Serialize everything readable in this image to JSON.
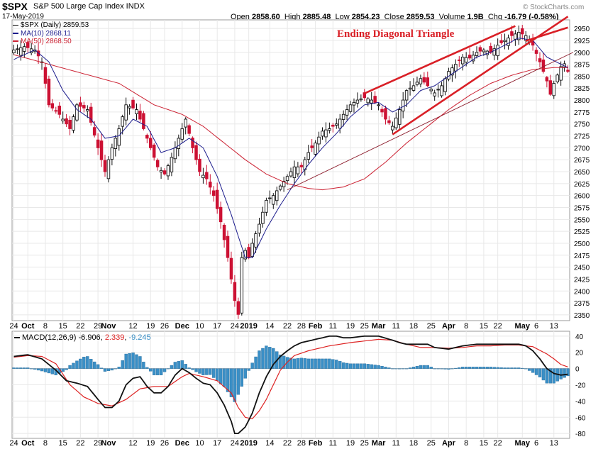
{
  "header": {
    "symbol": "$SPX",
    "name": "S&P 500 Large Cap Index  INDX",
    "date": "17-May-2019",
    "open_label": "Open",
    "open": "2858.60",
    "high_label": "High",
    "high": "2885.48",
    "low_label": "Low",
    "low": "2854.23",
    "close_label": "Close",
    "close": "2859.53",
    "volume_label": "Volume",
    "volume": "1.9B",
    "chg_label": "Chg",
    "chg": "-16.79 (-0.58%)",
    "watermark": "© StockCharts.com"
  },
  "legend": {
    "price": "$SPX (Daily) 2859.53",
    "ma10": "MA(10) 2868.11",
    "ma50": "MA(50) 2868.50",
    "macd_label": "MACD(12,26,9)",
    "macd_value": "-6.906",
    "signal_value": "2.339",
    "hist_value": "-9.245"
  },
  "annotation": "Ending Diagonal Triangle",
  "colors": {
    "ma10": "#1c1c8c",
    "ma50": "#cc2233",
    "up": "#111111",
    "down": "#cc1133",
    "hist": "#3a8fc6",
    "macd": "#111111",
    "signal": "#dd2222",
    "pattern": "#d91f26",
    "trendline": "#8b1a2a",
    "grid": "#e8e8e8"
  },
  "chart_data": {
    "type": "candlestick",
    "title": "$SPX S&P 500 Large Cap Index",
    "ylim": [
      2338,
      2968
    ],
    "y_ticks": [
      2350,
      2375,
      2400,
      2425,
      2450,
      2475,
      2500,
      2525,
      2550,
      2575,
      2600,
      2625,
      2650,
      2675,
      2700,
      2725,
      2750,
      2775,
      2800,
      2825,
      2850,
      2875,
      2900,
      2925,
      2950
    ],
    "x_tick_labels": [
      {
        "i": 0,
        "label": "24"
      },
      {
        "i": 4,
        "label": "Oct"
      },
      {
        "i": 9,
        "label": "8"
      },
      {
        "i": 14,
        "label": "15"
      },
      {
        "i": 19,
        "label": "22"
      },
      {
        "i": 24,
        "label": "29"
      },
      {
        "i": 27,
        "label": "Nov"
      },
      {
        "i": 34,
        "label": "12"
      },
      {
        "i": 39,
        "label": "19"
      },
      {
        "i": 43,
        "label": "26"
      },
      {
        "i": 48,
        "label": "Dec"
      },
      {
        "i": 53,
        "label": "10"
      },
      {
        "i": 58,
        "label": "17"
      },
      {
        "i": 63,
        "label": "24"
      },
      {
        "i": 67,
        "label": "2019"
      },
      {
        "i": 73,
        "label": "14"
      },
      {
        "i": 78,
        "label": "22"
      },
      {
        "i": 82,
        "label": "28"
      },
      {
        "i": 86,
        "label": "Feb"
      },
      {
        "i": 91,
        "label": "11"
      },
      {
        "i": 96,
        "label": "19"
      },
      {
        "i": 100,
        "label": "25"
      },
      {
        "i": 104,
        "label": "Mar"
      },
      {
        "i": 109,
        "label": "11"
      },
      {
        "i": 114,
        "label": "18"
      },
      {
        "i": 119,
        "label": "25"
      },
      {
        "i": 124,
        "label": "Apr"
      },
      {
        "i": 129,
        "label": "8"
      },
      {
        "i": 134,
        "label": "15"
      },
      {
        "i": 138,
        "label": "22"
      },
      {
        "i": 145,
        "label": "May"
      },
      {
        "i": 149,
        "label": "6"
      },
      {
        "i": 154,
        "label": "13"
      }
    ],
    "close_anchors": [
      [
        0,
        2905
      ],
      [
        3,
        2912
      ],
      [
        6,
        2905
      ],
      [
        8,
        2880
      ],
      [
        10,
        2790
      ],
      [
        13,
        2770
      ],
      [
        16,
        2740
      ],
      [
        18,
        2790
      ],
      [
        21,
        2780
      ],
      [
        24,
        2700
      ],
      [
        26,
        2650
      ],
      [
        28,
        2700
      ],
      [
        30,
        2740
      ],
      [
        32,
        2790
      ],
      [
        35,
        2780
      ],
      [
        37,
        2740
      ],
      [
        39,
        2700
      ],
      [
        41,
        2660
      ],
      [
        43,
        2645
      ],
      [
        45,
        2680
      ],
      [
        47,
        2720
      ],
      [
        49,
        2760
      ],
      [
        51,
        2700
      ],
      [
        53,
        2650
      ],
      [
        55,
        2635
      ],
      [
        57,
        2600
      ],
      [
        59,
        2545
      ],
      [
        61,
        2470
      ],
      [
        63,
        2380
      ],
      [
        64,
        2351
      ],
      [
        65,
        2470
      ],
      [
        66,
        2485
      ],
      [
        67,
        2470
      ],
      [
        68,
        2500
      ],
      [
        70,
        2540
      ],
      [
        72,
        2590
      ],
      [
        74,
        2600
      ],
      [
        76,
        2620
      ],
      [
        78,
        2640
      ],
      [
        80,
        2660
      ],
      [
        82,
        2660
      ],
      [
        84,
        2690
      ],
      [
        86,
        2710
      ],
      [
        88,
        2735
      ],
      [
        90,
        2740
      ],
      [
        92,
        2750
      ],
      [
        94,
        2770
      ],
      [
        96,
        2790
      ],
      [
        98,
        2800
      ],
      [
        100,
        2805
      ],
      [
        102,
        2800
      ],
      [
        104,
        2790
      ],
      [
        106,
        2760
      ],
      [
        108,
        2745
      ],
      [
        110,
        2780
      ],
      [
        112,
        2820
      ],
      [
        114,
        2830
      ],
      [
        116,
        2845
      ],
      [
        118,
        2830
      ],
      [
        120,
        2815
      ],
      [
        122,
        2830
      ],
      [
        124,
        2860
      ],
      [
        126,
        2875
      ],
      [
        128,
        2890
      ],
      [
        130,
        2888
      ],
      [
        132,
        2900
      ],
      [
        134,
        2905
      ],
      [
        136,
        2900
      ],
      [
        138,
        2915
      ],
      [
        140,
        2925
      ],
      [
        142,
        2935
      ],
      [
        144,
        2942
      ],
      [
        146,
        2935
      ],
      [
        148,
        2915
      ],
      [
        150,
        2880
      ],
      [
        152,
        2840
      ],
      [
        153,
        2812
      ],
      [
        154,
        2835
      ],
      [
        156,
        2870
      ],
      [
        157,
        2876
      ],
      [
        158,
        2860
      ]
    ],
    "ma10_anchors": [
      [
        0,
        2885
      ],
      [
        6,
        2905
      ],
      [
        10,
        2880
      ],
      [
        14,
        2820
      ],
      [
        18,
        2780
      ],
      [
        22,
        2760
      ],
      [
        26,
        2720
      ],
      [
        30,
        2725
      ],
      [
        34,
        2760
      ],
      [
        38,
        2745
      ],
      [
        42,
        2690
      ],
      [
        46,
        2700
      ],
      [
        50,
        2720
      ],
      [
        54,
        2700
      ],
      [
        58,
        2640
      ],
      [
        62,
        2560
      ],
      [
        66,
        2470
      ],
      [
        68,
        2470
      ],
      [
        72,
        2530
      ],
      [
        76,
        2580
      ],
      [
        80,
        2625
      ],
      [
        84,
        2665
      ],
      [
        88,
        2700
      ],
      [
        92,
        2730
      ],
      [
        96,
        2765
      ],
      [
        100,
        2790
      ],
      [
        104,
        2795
      ],
      [
        108,
        2775
      ],
      [
        112,
        2790
      ],
      [
        116,
        2820
      ],
      [
        120,
        2830
      ],
      [
        124,
        2850
      ],
      [
        128,
        2870
      ],
      [
        132,
        2890
      ],
      [
        136,
        2900
      ],
      [
        140,
        2915
      ],
      [
        144,
        2930
      ],
      [
        148,
        2925
      ],
      [
        152,
        2890
      ],
      [
        156,
        2875
      ],
      [
        158,
        2868
      ]
    ],
    "ma50_anchors": [
      [
        0,
        2895
      ],
      [
        10,
        2875
      ],
      [
        20,
        2855
      ],
      [
        30,
        2835
      ],
      [
        40,
        2790
      ],
      [
        48,
        2770
      ],
      [
        54,
        2745
      ],
      [
        60,
        2710
      ],
      [
        66,
        2675
      ],
      [
        72,
        2645
      ],
      [
        78,
        2625
      ],
      [
        84,
        2615
      ],
      [
        88,
        2612
      ],
      [
        94,
        2618
      ],
      [
        100,
        2635
      ],
      [
        106,
        2670
      ],
      [
        112,
        2710
      ],
      [
        118,
        2745
      ],
      [
        124,
        2780
      ],
      [
        130,
        2810
      ],
      [
        136,
        2835
      ],
      [
        142,
        2852
      ],
      [
        148,
        2864
      ],
      [
        154,
        2868
      ],
      [
        158,
        2868
      ]
    ],
    "macd": {
      "ylim": [
        -86,
        46
      ],
      "y_ticks": [
        40,
        20,
        0,
        -20,
        -40,
        -60,
        -80
      ],
      "macd_anchors": [
        [
          0,
          15
        ],
        [
          4,
          17
        ],
        [
          8,
          12
        ],
        [
          12,
          -2
        ],
        [
          15,
          -15
        ],
        [
          18,
          -18
        ],
        [
          21,
          -22
        ],
        [
          24,
          -38
        ],
        [
          26,
          -48
        ],
        [
          28,
          -48
        ],
        [
          30,
          -40
        ],
        [
          32,
          -20
        ],
        [
          34,
          -12
        ],
        [
          36,
          -10
        ],
        [
          38,
          -22
        ],
        [
          40,
          -30
        ],
        [
          42,
          -30
        ],
        [
          44,
          -22
        ],
        [
          46,
          -8
        ],
        [
          48,
          0
        ],
        [
          50,
          -5
        ],
        [
          52,
          -12
        ],
        [
          54,
          -18
        ],
        [
          56,
          -20
        ],
        [
          58,
          -30
        ],
        [
          60,
          -45
        ],
        [
          62,
          -65
        ],
        [
          63,
          -80
        ],
        [
          64,
          -80
        ],
        [
          66,
          -72
        ],
        [
          68,
          -55
        ],
        [
          70,
          -30
        ],
        [
          72,
          -10
        ],
        [
          74,
          5
        ],
        [
          76,
          15
        ],
        [
          78,
          22
        ],
        [
          80,
          28
        ],
        [
          82,
          32
        ],
        [
          84,
          34
        ],
        [
          86,
          36
        ],
        [
          88,
          38
        ],
        [
          90,
          40
        ],
        [
          92,
          40
        ],
        [
          94,
          38
        ],
        [
          96,
          38
        ],
        [
          100,
          40
        ],
        [
          104,
          40
        ],
        [
          108,
          35
        ],
        [
          110,
          32
        ],
        [
          112,
          30
        ],
        [
          114,
          30
        ],
        [
          118,
          30
        ],
        [
          120,
          26
        ],
        [
          124,
          24
        ],
        [
          128,
          28
        ],
        [
          132,
          30
        ],
        [
          136,
          30
        ],
        [
          140,
          30
        ],
        [
          144,
          30
        ],
        [
          146,
          28
        ],
        [
          148,
          22
        ],
        [
          150,
          12
        ],
        [
          152,
          0
        ],
        [
          154,
          -6
        ],
        [
          156,
          -8
        ],
        [
          158,
          -7
        ]
      ],
      "signal_anchors": [
        [
          0,
          14
        ],
        [
          4,
          16
        ],
        [
          8,
          15
        ],
        [
          12,
          6
        ],
        [
          16,
          -20
        ],
        [
          20,
          -35
        ],
        [
          24,
          -43
        ],
        [
          28,
          -46
        ],
        [
          32,
          -38
        ],
        [
          36,
          -25
        ],
        [
          40,
          -22
        ],
        [
          44,
          -22
        ],
        [
          48,
          -10
        ],
        [
          50,
          -6
        ],
        [
          54,
          -10
        ],
        [
          58,
          -15
        ],
        [
          62,
          -30
        ],
        [
          64,
          -48
        ],
        [
          66,
          -60
        ],
        [
          68,
          -62
        ],
        [
          70,
          -52
        ],
        [
          72,
          -38
        ],
        [
          74,
          -20
        ],
        [
          76,
          -2
        ],
        [
          78,
          8
        ],
        [
          80,
          16
        ],
        [
          84,
          22
        ],
        [
          90,
          28
        ],
        [
          96,
          32
        ],
        [
          100,
          34
        ],
        [
          104,
          36
        ],
        [
          108,
          35
        ],
        [
          112,
          30
        ],
        [
          116,
          26
        ],
        [
          120,
          26
        ],
        [
          124,
          25
        ],
        [
          128,
          26
        ],
        [
          132,
          28
        ],
        [
          136,
          28
        ],
        [
          140,
          29
        ],
        [
          144,
          29
        ],
        [
          148,
          27
        ],
        [
          152,
          18
        ],
        [
          154,
          12
        ],
        [
          156,
          5
        ],
        [
          158,
          2
        ]
      ]
    }
  }
}
